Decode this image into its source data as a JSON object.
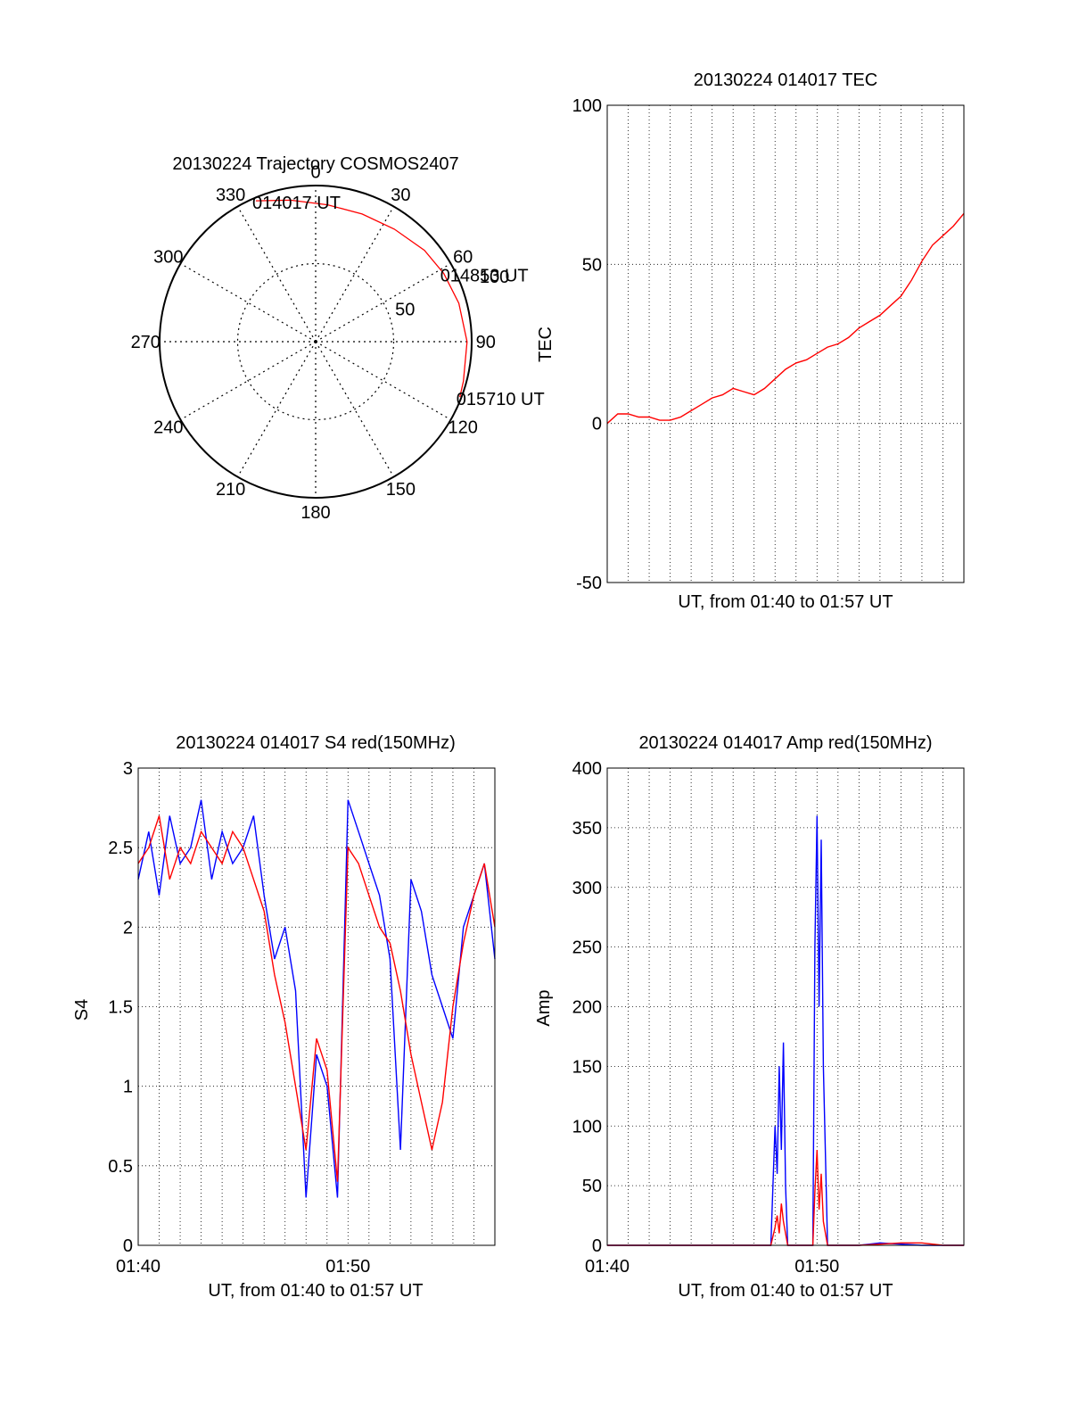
{
  "chart_data": [
    {
      "type": "polar",
      "title": "20130224 Trajectory COSMOS2407",
      "angle_ticks": [
        "0",
        "30",
        "60",
        "90",
        "120",
        "150",
        "180",
        "210",
        "240",
        "270",
        "300",
        "330"
      ],
      "radial_ticks": [
        "50",
        "100"
      ],
      "radial_range": [
        0,
        100
      ],
      "series": [
        {
          "color": "#ff0000",
          "points": [
            {
              "az": 337,
              "r": 98
            },
            {
              "az": 350,
              "r": 92
            },
            {
              "az": 5,
              "r": 88
            },
            {
              "az": 20,
              "r": 87
            },
            {
              "az": 35,
              "r": 88
            },
            {
              "az": 50,
              "r": 91
            },
            {
              "az": 62,
              "r": 93
            },
            {
              "az": 75,
              "r": 95
            },
            {
              "az": 90,
              "r": 97
            },
            {
              "az": 105,
              "r": 98
            },
            {
              "az": 111,
              "r": 99
            }
          ]
        }
      ],
      "annotations": [
        {
          "text": "014017 UT",
          "az": 337,
          "r": 98
        },
        {
          "text": "014853 UT",
          "az": 62,
          "r": 93
        },
        {
          "text": "015710 UT",
          "az": 111,
          "r": 99
        }
      ],
      "grid": true
    },
    {
      "type": "line",
      "title": "20130224 014017 TEC",
      "xlabel": "UT, from 01:40 to 01:57 UT",
      "ylabel": "TEC",
      "xlim": [
        0,
        17
      ],
      "ylim": [
        -50,
        100
      ],
      "yticks": [
        "-50",
        "0",
        "50",
        "100"
      ],
      "grid": true,
      "series": [
        {
          "color": "#ff0000",
          "x": [
            0,
            0.5,
            1,
            1.5,
            2,
            2.5,
            3,
            3.5,
            4,
            4.5,
            5,
            5.5,
            6,
            6.5,
            7,
            7.5,
            8,
            8.5,
            9,
            9.5,
            10,
            10.5,
            11,
            11.5,
            12,
            12.5,
            13,
            13.5,
            14,
            14.5,
            15,
            15.5,
            16,
            16.5,
            17
          ],
          "y": [
            0,
            3,
            3,
            2,
            2,
            1,
            1,
            2,
            4,
            6,
            8,
            9,
            11,
            10,
            9,
            11,
            14,
            17,
            19,
            20,
            22,
            24,
            25,
            27,
            30,
            32,
            34,
            37,
            40,
            45,
            51,
            56,
            59,
            62,
            66
          ]
        }
      ]
    },
    {
      "type": "line",
      "title": "20130224 014017 S4 red(150MHz)",
      "xlabel": "UT, from 01:40 to 01:57 UT",
      "ylabel": "S4",
      "xlim": [
        0,
        17
      ],
      "ylim": [
        0,
        3
      ],
      "xticks": [
        "01:40",
        "01:50"
      ],
      "yticks": [
        "0",
        "0.5",
        "1",
        "1.5",
        "2",
        "2.5",
        "3"
      ],
      "grid": true,
      "series": [
        {
          "color": "#0000ff",
          "x": [
            0,
            0.5,
            1,
            1.5,
            2,
            2.5,
            3,
            3.5,
            4,
            4.5,
            5,
            5.5,
            6,
            6.5,
            7,
            7.5,
            8,
            8.5,
            9,
            9.5,
            10,
            10.5,
            11,
            11.5,
            12,
            12.5,
            13,
            13.5,
            14,
            14.5,
            15,
            15.5,
            16,
            16.5,
            17
          ],
          "y": [
            2.3,
            2.6,
            2.2,
            2.7,
            2.4,
            2.5,
            2.8,
            2.3,
            2.6,
            2.4,
            2.5,
            2.7,
            2.2,
            1.8,
            2.0,
            1.6,
            0.3,
            1.2,
            1.0,
            0.3,
            2.8,
            2.6,
            2.4,
            2.2,
            1.8,
            0.6,
            2.3,
            2.1,
            1.7,
            1.5,
            1.3,
            2.0,
            2.2,
            2.4,
            1.8
          ]
        },
        {
          "color": "#ff0000",
          "x": [
            0,
            0.5,
            1,
            1.5,
            2,
            2.5,
            3,
            3.5,
            4,
            4.5,
            5,
            5.5,
            6,
            6.5,
            7,
            7.5,
            8,
            8.5,
            9,
            9.5,
            10,
            10.5,
            11,
            11.5,
            12,
            12.5,
            13,
            13.5,
            14,
            14.5,
            15,
            15.5,
            16,
            16.5,
            17
          ],
          "y": [
            2.4,
            2.5,
            2.7,
            2.3,
            2.5,
            2.4,
            2.6,
            2.5,
            2.4,
            2.6,
            2.5,
            2.3,
            2.1,
            1.7,
            1.4,
            1.0,
            0.6,
            1.3,
            1.1,
            0.4,
            2.5,
            2.4,
            2.2,
            2.0,
            1.9,
            1.6,
            1.2,
            0.9,
            0.6,
            0.9,
            1.5,
            1.9,
            2.2,
            2.4,
            2.0
          ]
        }
      ]
    },
    {
      "type": "line",
      "title": "20130224 014017 Amp red(150MHz)",
      "xlabel": "UT, from 01:40 to 01:57 UT",
      "ylabel": "Amp",
      "xlim": [
        0,
        17
      ],
      "ylim": [
        0,
        400
      ],
      "xticks": [
        "01:40",
        "01:50"
      ],
      "yticks": [
        "0",
        "50",
        "100",
        "150",
        "200",
        "250",
        "300",
        "350",
        "400"
      ],
      "grid": true,
      "series": [
        {
          "color": "#0000ff",
          "x": [
            0,
            2,
            4,
            6,
            7.8,
            8.0,
            8.1,
            8.2,
            8.3,
            8.4,
            8.5,
            8.6,
            8.8,
            9.6,
            9.8,
            9.9,
            10.0,
            10.1,
            10.2,
            10.3,
            10.5,
            12,
            12.5,
            13,
            14,
            15,
            17
          ],
          "y": [
            0,
            0,
            0,
            0,
            0,
            100,
            60,
            150,
            80,
            170,
            50,
            0,
            0,
            0,
            0,
            250,
            360,
            200,
            340,
            150,
            0,
            0,
            1,
            2,
            1,
            0,
            0
          ]
        },
        {
          "color": "#ff0000",
          "x": [
            0,
            2,
            4,
            6,
            7.8,
            8.0,
            8.1,
            8.2,
            8.3,
            8.4,
            8.5,
            8.6,
            8.8,
            9.6,
            9.8,
            9.9,
            10.0,
            10.1,
            10.2,
            10.3,
            10.5,
            12,
            13,
            14,
            15,
            16,
            17
          ],
          "y": [
            0,
            0,
            0,
            0,
            0,
            15,
            25,
            10,
            35,
            20,
            10,
            0,
            0,
            0,
            0,
            45,
            80,
            30,
            60,
            20,
            0,
            0,
            1,
            2,
            2,
            0,
            0
          ]
        }
      ]
    }
  ]
}
